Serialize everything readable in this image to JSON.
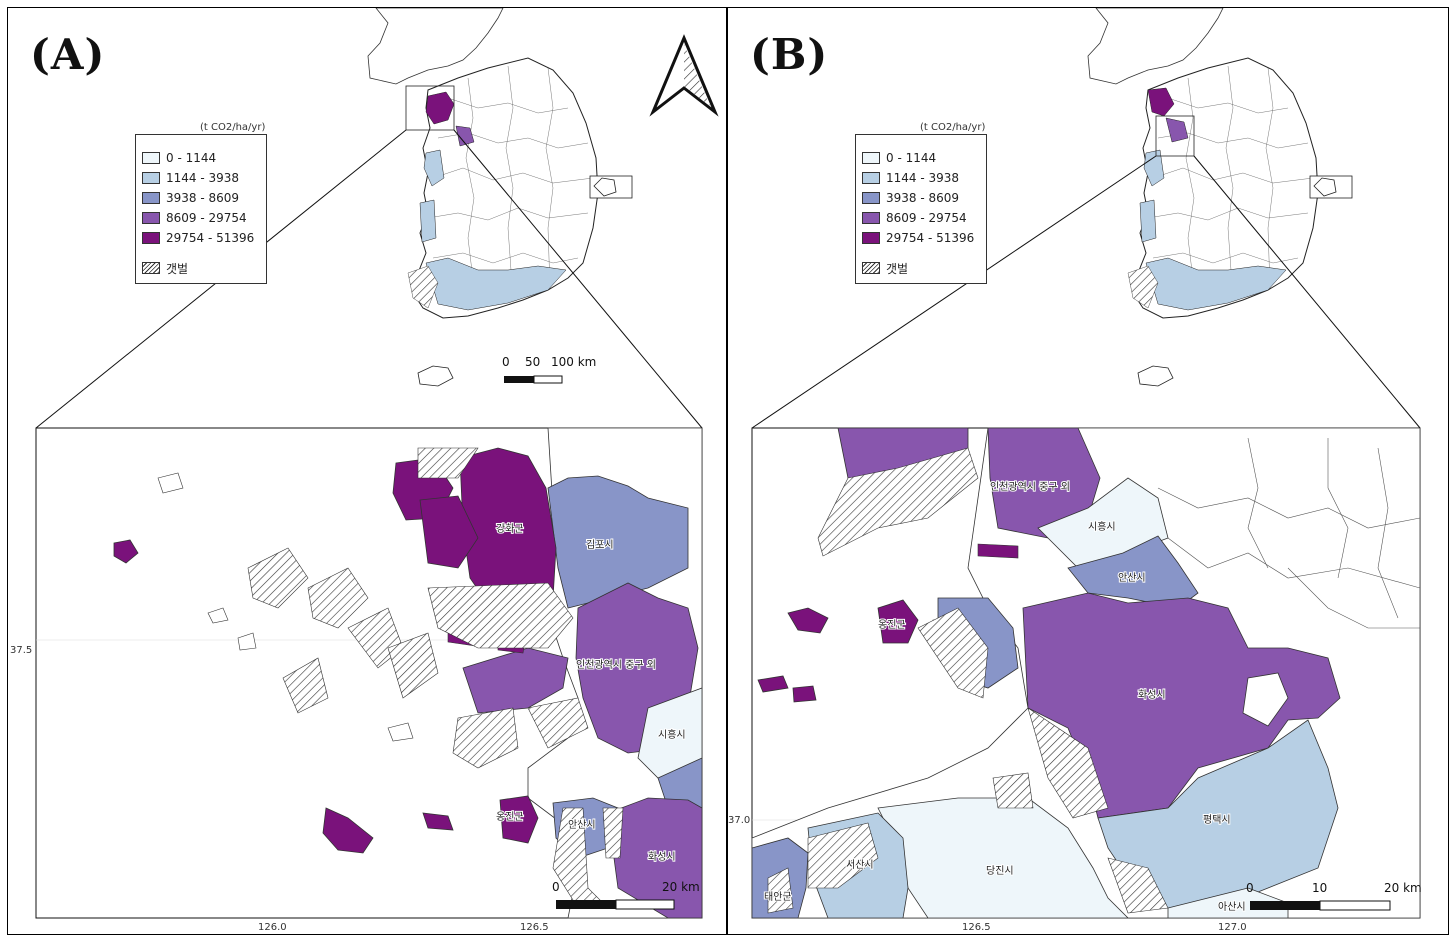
{
  "colors": {
    "class1": "#eef6fa",
    "class2": "#b7cfe4",
    "class3": "#8895c8",
    "class4": "#8856ad",
    "class5": "#7a127b",
    "tidal_flat_hatch": "#333333"
  },
  "panels": [
    {
      "letter": "(A)",
      "legend": {
        "unit": "(t CO2/ha/yr)",
        "classes": [
          "0 - 1144",
          "1144 - 3938",
          "3938 - 8609",
          "8609 - 29754",
          "29754 - 51396"
        ],
        "hatch_label": "갯벌"
      },
      "scale_overview": {
        "ticks": [
          "0",
          "50",
          "100 km"
        ]
      },
      "scale_inset": {
        "ticks": [
          "0",
          "20 km"
        ]
      },
      "axes": {
        "lat_tick": "37.5",
        "lon_ticks": [
          "126.0",
          "126.5"
        ]
      },
      "place_labels": [
        "강화군",
        "김포시",
        "인천광역시 중구 외",
        "시흥시",
        "옹진군",
        "안산시",
        "화성시"
      ],
      "north_arrow": "north-arrow-icon"
    },
    {
      "letter": "(B)",
      "legend": {
        "unit": "(t CO2/ha/yr)",
        "classes": [
          "0 - 1144",
          "1144 - 3938",
          "3938 - 8609",
          "8609 - 29754",
          "29754 - 51396"
        ],
        "hatch_label": "갯벌"
      },
      "scale_inset": {
        "ticks": [
          "0",
          "10",
          "20 km"
        ]
      },
      "axes": {
        "lat_tick": "37.0",
        "lon_ticks": [
          "126.5",
          "127.0"
        ]
      },
      "place_labels": [
        "인천광역시 중구 외",
        "시흥시",
        "안산시",
        "옹진군",
        "화성시",
        "평택시",
        "서산시",
        "당진시",
        "태안군",
        "아산시"
      ]
    }
  ]
}
